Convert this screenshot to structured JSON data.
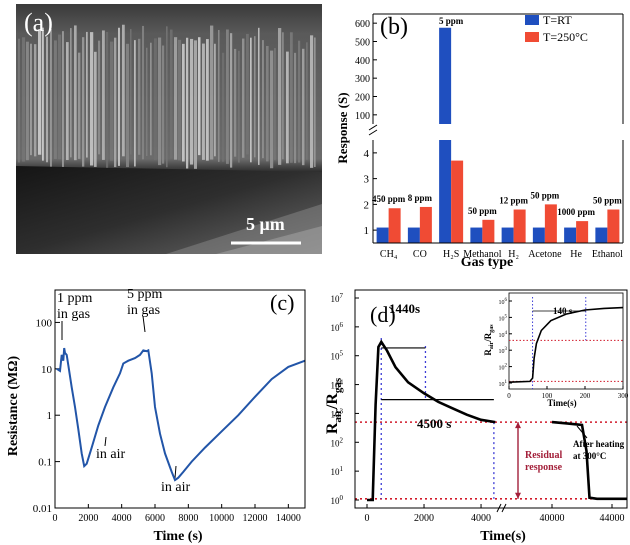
{
  "panels": {
    "a": {
      "label": "(a)",
      "scalebar": "5 μm"
    },
    "b": {
      "label": "(b)",
      "ylabel": "Response (S)",
      "xlabel": "Gas type",
      "legend": [
        "T=RT",
        "T=250°C"
      ],
      "upper_ticks": [
        "100",
        "200",
        "300",
        "400",
        "500",
        "600"
      ],
      "lower_ticks": [
        "1",
        "2",
        "3",
        "4"
      ]
    },
    "c": {
      "label": "(c)",
      "ylabel": "Resistance (MΩ)",
      "xlabel": "Time (s)",
      "x_ticks": [
        "0",
        "2000",
        "4000",
        "6000",
        "8000",
        "10000",
        "12000",
        "14000"
      ],
      "y_ticks": [
        "0.01",
        "0.1",
        "1",
        "10",
        "100"
      ],
      "annotations": [
        "1 ppm",
        "in gas",
        "5 ppm",
        "in gas",
        "in air",
        "in air"
      ]
    },
    "d": {
      "label": "(d)",
      "xlabel": "Time(s)",
      "x_ticks_left": [
        "0",
        "2000",
        "4000"
      ],
      "x_ticks_right": [
        "40000",
        "44000"
      ],
      "y_ticks": [
        "10",
        "10",
        "10",
        "10",
        "10",
        "10",
        "10",
        "10"
      ],
      "y_exps": [
        "0",
        "1",
        "2",
        "3",
        "4",
        "5",
        "6",
        "7"
      ],
      "annotations": {
        "t1": "1440s",
        "t2": "4500 s",
        "residual_1": "Residual",
        "residual_2": "response",
        "heating_1": "After heating",
        "heating_2": "at 300°C"
      },
      "inset": {
        "annotation": "140 s",
        "xlabel": "Time(s)",
        "x_ticks": [
          "0",
          "100",
          "200",
          "300"
        ],
        "y_exps": [
          "1",
          "2",
          "3",
          "4",
          "5",
          "6"
        ]
      }
    }
  },
  "colors": {
    "rt": "#1f4fbf",
    "ht": "#f04b34",
    "trace": "#2255a8",
    "dotted_red": "#d11a2a",
    "dotted_blue": "#3d3dd6",
    "residual": "#a3203a"
  },
  "chart_data": [
    {
      "panel": "b",
      "type": "bar",
      "categories": [
        "CH₄",
        "CO",
        "H₂S",
        "Methanol",
        "H₂",
        "Acetone",
        "He",
        "Ethanol"
      ],
      "concentrations": [
        "450 ppm",
        "8 ppm",
        "5 ppm",
        "50 ppm",
        "12 ppm",
        "50 ppm",
        "1000 ppm",
        "50 ppm"
      ],
      "series": [
        {
          "name": "T=RT",
          "values": [
            1.1,
            1.1,
            575,
            1.1,
            1.1,
            1.1,
            1.1,
            1.1
          ]
        },
        {
          "name": "T=250°C",
          "values": [
            1.85,
            1.9,
            3.7,
            1.4,
            1.8,
            2.0,
            1.35,
            1.8
          ]
        }
      ],
      "xlabel": "Gas type",
      "ylabel": "Response (S)",
      "ylim_lower": [
        0.5,
        4.5
      ],
      "ylim_upper": [
        50,
        650
      ]
    },
    {
      "panel": "c",
      "type": "line",
      "scale": "log-y",
      "xlabel": "Time (s)",
      "ylabel": "Resistance (MΩ)",
      "xlim": [
        0,
        15000
      ],
      "ylim": [
        0.01,
        500
      ],
      "x": [
        100,
        300,
        400,
        500,
        550,
        600,
        700,
        800,
        1000,
        1200,
        1400,
        1600,
        1750,
        1900,
        2200,
        2600,
        3000,
        3500,
        3900,
        4100,
        4400,
        4800,
        5100,
        5300,
        5500,
        5600,
        5800,
        6000,
        6300,
        6600,
        7000,
        7200,
        7400,
        7700,
        8200,
        9000,
        10000,
        11000,
        12000,
        13000,
        14000,
        15000
      ],
      "y": [
        10,
        9,
        20,
        15,
        28,
        22,
        20,
        12,
        4,
        1.5,
        0.5,
        0.15,
        0.08,
        0.09,
        0.2,
        0.6,
        1.5,
        4,
        8,
        13,
        15,
        17,
        20,
        25,
        24,
        25,
        8,
        1.5,
        0.4,
        0.15,
        0.06,
        0.04,
        0.045,
        0.06,
        0.1,
        0.2,
        0.45,
        1,
        2.5,
        6,
        11,
        15
      ]
    },
    {
      "panel": "d",
      "type": "line",
      "scale": "log-y",
      "xlabel": "Time(s)",
      "ylabel": "Rair/Rgas",
      "ylim": [
        1,
        10000000
      ],
      "x": [
        0,
        200,
        300,
        400,
        500,
        700,
        1000,
        1440,
        2000,
        2500,
        3000,
        3500,
        4000,
        4500,
        40000,
        41000,
        42000,
        42300,
        42500,
        43000,
        44000,
        45000
      ],
      "y": [
        1,
        1,
        2000,
        200000,
        300000,
        150000,
        40000,
        12000,
        5000,
        2500,
        1500,
        900,
        600,
        500,
        500,
        450,
        400,
        50,
        1.2,
        1.1,
        1.1,
        1.1
      ]
    }
  ]
}
